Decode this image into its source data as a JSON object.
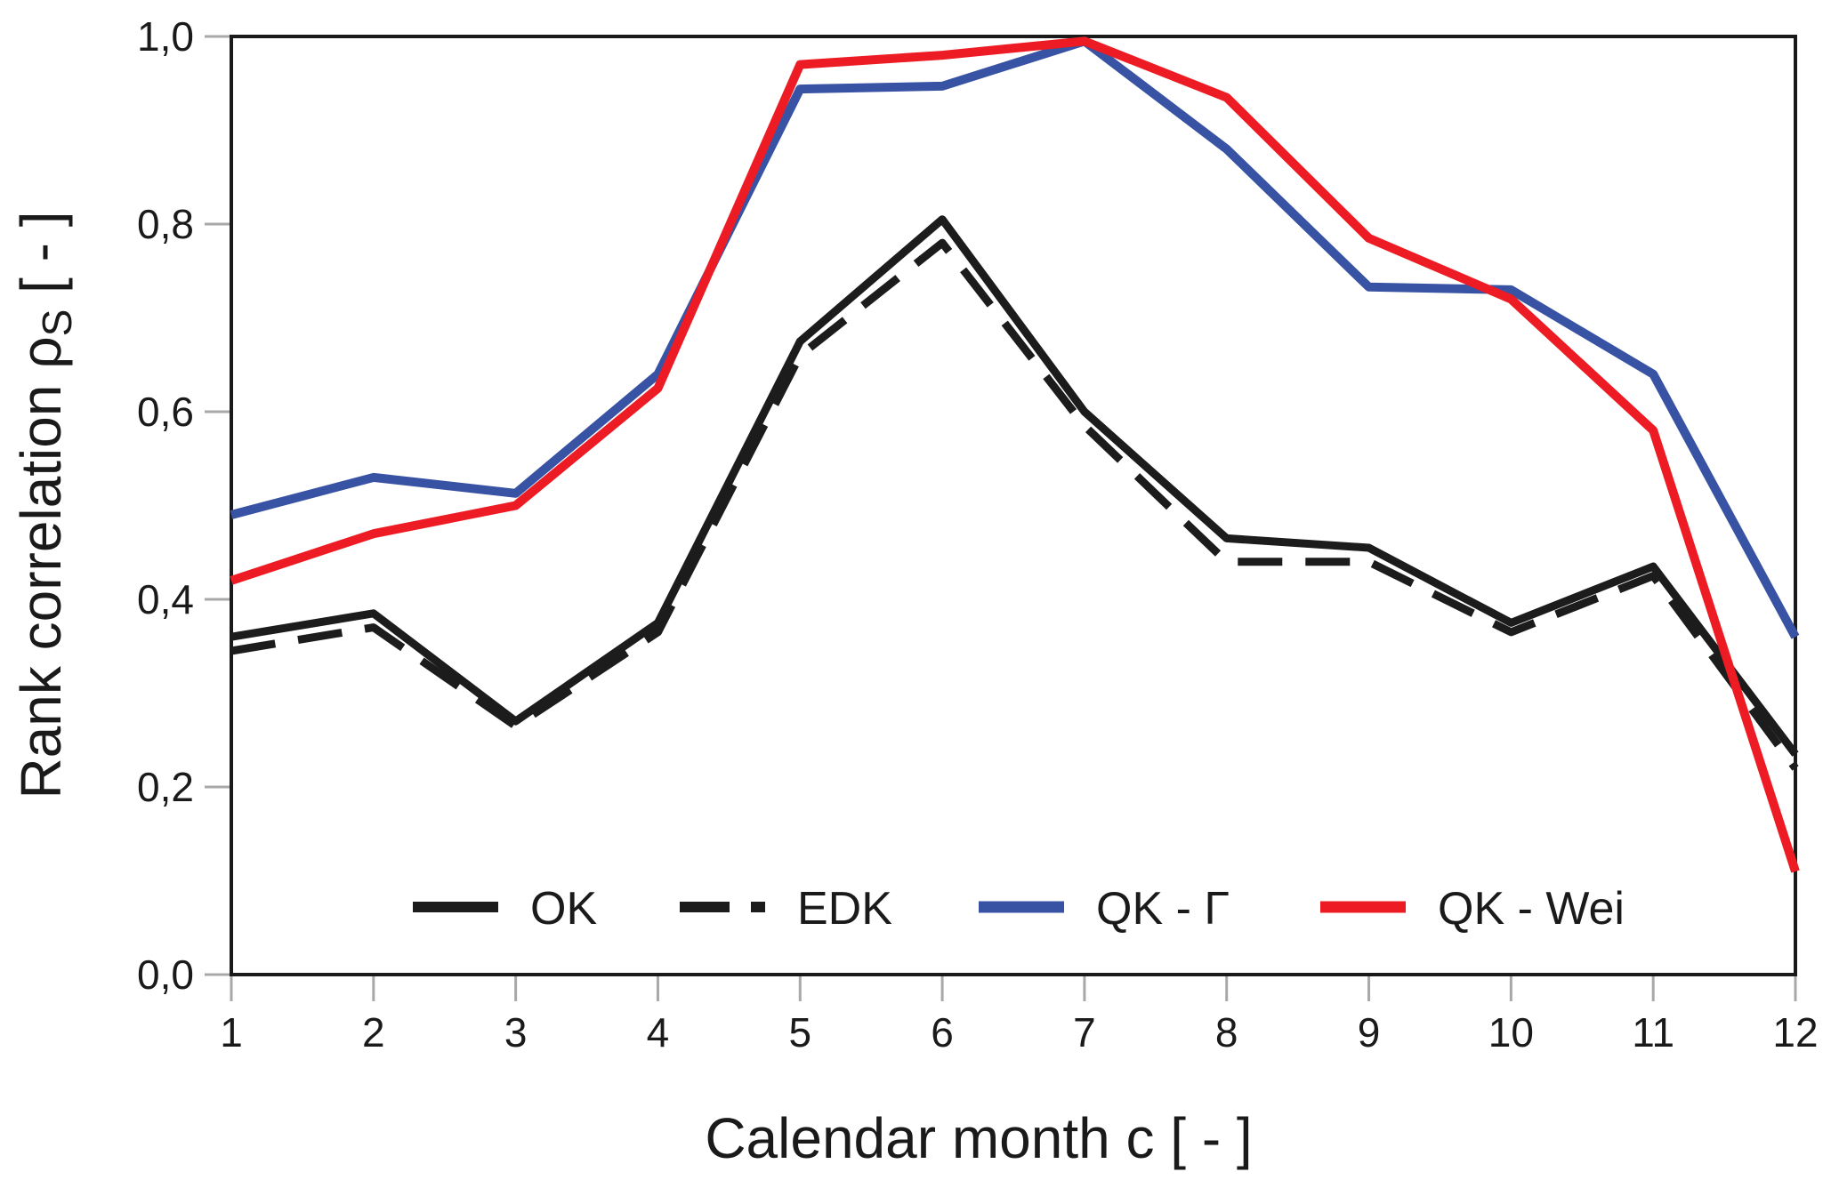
{
  "figure": {
    "background": "#ffffff",
    "frame_color": "#1a1a1a",
    "tick_color": "#a8a8a8",
    "text_color": "#1a1a1a"
  },
  "chart_data": {
    "type": "line",
    "title": "",
    "xlabel": "Calendar month c [ - ]",
    "ylabel": "Rank correlation ρS [ - ]",
    "ylabel_parts": {
      "main": "Rank correlation ρ",
      "sub": "S",
      "unit": " [ - ]"
    },
    "x": [
      1,
      2,
      3,
      4,
      5,
      6,
      7,
      8,
      9,
      10,
      11,
      12
    ],
    "x_tick_labels": [
      "1",
      "2",
      "3",
      "4",
      "5",
      "6",
      "7",
      "8",
      "9",
      "10",
      "11",
      "12"
    ],
    "y_tick_values": [
      0.0,
      0.2,
      0.4,
      0.6,
      0.8,
      1.0
    ],
    "y_tick_labels": [
      "0,0",
      "0,2",
      "0,4",
      "0,6",
      "0,8",
      "1,0"
    ],
    "xlim": [
      1,
      12
    ],
    "ylim": [
      0.0,
      1.0
    ],
    "grid": false,
    "legend_position": "inside-bottom-center",
    "series": [
      {
        "id": "ok",
        "name": "OK",
        "color": "#1c1c1c",
        "style": "solid",
        "width": 9,
        "values": [
          0.36,
          0.385,
          0.27,
          0.375,
          0.675,
          0.805,
          0.6,
          0.465,
          0.455,
          0.375,
          0.435,
          0.235
        ]
      },
      {
        "id": "edk",
        "name": "EDK",
        "color": "#1c1c1c",
        "style": "dashed",
        "dash": [
          50,
          26
        ],
        "width": 9,
        "values": [
          0.345,
          0.37,
          0.265,
          0.365,
          0.66,
          0.78,
          0.585,
          0.44,
          0.44,
          0.365,
          0.425,
          0.22
        ]
      },
      {
        "id": "qk-gamma",
        "name": "QK - Γ",
        "color": "#3953a4",
        "style": "solid",
        "width": 10,
        "values": [
          0.49,
          0.53,
          0.513,
          0.64,
          0.944,
          0.947,
          0.995,
          0.88,
          0.733,
          0.73,
          0.64,
          0.36
        ]
      },
      {
        "id": "qk-wei",
        "name": "QK - Wei",
        "color": "#ed1c24",
        "style": "solid",
        "width": 10,
        "values": [
          0.42,
          0.47,
          0.5,
          0.625,
          0.97,
          0.98,
          0.995,
          0.935,
          0.785,
          0.72,
          0.58,
          0.11
        ]
      }
    ]
  }
}
